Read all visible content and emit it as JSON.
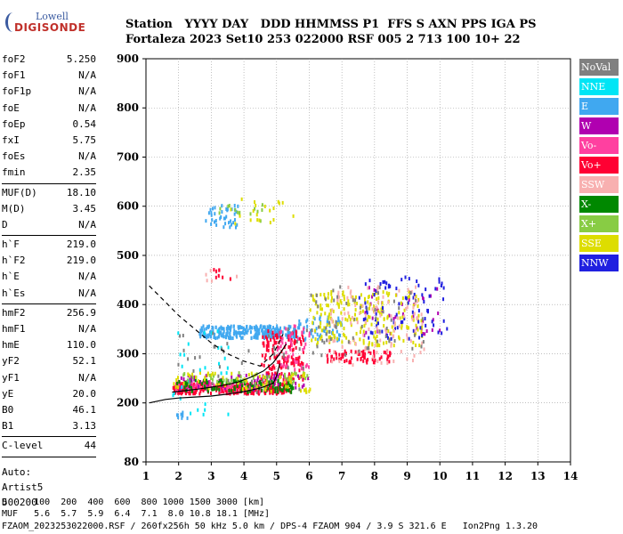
{
  "logo": {
    "line1": "Lowell",
    "line2": "DIGISONDE"
  },
  "header": {
    "line1": "Station   YYYY DAY   DDD HHMMSS P1  FFS S AXN PPS IGA PS",
    "line2": "Fortaleza 2023 Set10 253 022000 RSF 005 2 713 100 10+ 22"
  },
  "params": {
    "group1": [
      {
        "name": "foF2",
        "value": "5.250"
      },
      {
        "name": "foF1",
        "value": "N/A"
      },
      {
        "name": "foF1p",
        "value": "N/A"
      },
      {
        "name": "foE",
        "value": "N/A"
      },
      {
        "name": "foEp",
        "value": "0.54"
      },
      {
        "name": "fxI",
        "value": "5.75"
      },
      {
        "name": "foEs",
        "value": "N/A"
      },
      {
        "name": "fmin",
        "value": "2.35"
      }
    ],
    "group2": [
      {
        "name": "MUF(D)",
        "value": "18.10"
      },
      {
        "name": "M(D)",
        "value": "3.45"
      },
      {
        "name": "D",
        "value": "N/A"
      }
    ],
    "group3": [
      {
        "name": "h`F",
        "value": "219.0"
      },
      {
        "name": "h`F2",
        "value": "219.0"
      },
      {
        "name": "h`E",
        "value": "N/A"
      },
      {
        "name": "h`Es",
        "value": "N/A"
      }
    ],
    "group4": [
      {
        "name": "hmF2",
        "value": "256.9"
      },
      {
        "name": "hmF1",
        "value": "N/A"
      },
      {
        "name": "hmE",
        "value": "110.0"
      },
      {
        "name": "yF2",
        "value": "52.1"
      },
      {
        "name": "yF1",
        "value": "N/A"
      },
      {
        "name": "yE",
        "value": "20.0"
      },
      {
        "name": "B0",
        "value": "46.1"
      },
      {
        "name": "B1",
        "value": "3.13"
      }
    ],
    "group5": [
      {
        "name": "C-level",
        "value": "44"
      }
    ],
    "auto": [
      "Auto:",
      "Artist5",
      "500200"
    ]
  },
  "legend": [
    {
      "label": "NoVal",
      "color": "#808080"
    },
    {
      "label": "NNE",
      "color": "#00e5f5"
    },
    {
      "label": "E",
      "color": "#40a8f0"
    },
    {
      "label": "W",
      "color": "#b000b0"
    },
    {
      "label": "Vo-",
      "color": "#ff40a0"
    },
    {
      "label": "Vo+",
      "color": "#ff0033"
    },
    {
      "label": "SSW",
      "color": "#f8b0b0"
    },
    {
      "label": "X-",
      "color": "#008800"
    },
    {
      "label": "X+",
      "color": "#88cc44"
    },
    {
      "label": "SSE",
      "color": "#dddd00"
    },
    {
      "label": "NNW",
      "color": "#2020e0"
    }
  ],
  "footer": {
    "line1": "D     100  200  400  600  800 1000 1500 3000 [km]",
    "line2": "MUF   5.6  5.7  5.9  6.4  7.1  8.0 10.8 18.1 [MHz]",
    "line3": "FZAOM_2023253022000.RSF / 260fx256h 50 kHz 5.0 km / DPS-4 FZAOM 904 / 3.9 S 321.6 E   Ion2Png 1.3.20"
  },
  "chart_data": {
    "type": "scatter",
    "xlim": [
      1,
      14
    ],
    "ylim": [
      80,
      900
    ],
    "xticks": [
      "1",
      "2",
      "3",
      "4",
      "5",
      "6",
      "7",
      "8",
      "9",
      "10",
      "11",
      "12",
      "13",
      "14"
    ],
    "yticks": [
      "80",
      "200",
      "300",
      "400",
      "500",
      "600",
      "700",
      "800",
      "900"
    ],
    "grid": true,
    "clusters": [
      {
        "series": "E",
        "fx": [
          2.6,
          5.6
        ],
        "fy": [
          335,
          360
        ],
        "n": 260
      },
      {
        "series": "E",
        "fx": [
          2.8,
          3.8
        ],
        "fy": [
          560,
          605
        ],
        "n": 40
      },
      {
        "series": "E",
        "fx": [
          5.5,
          7.0
        ],
        "fy": [
          330,
          380
        ],
        "n": 60
      },
      {
        "series": "E",
        "fx": [
          1.8,
          2.3
        ],
        "fy": [
          170,
          185
        ],
        "n": 8
      },
      {
        "series": "Vo+",
        "fx": [
          1.8,
          5.4
        ],
        "fy": [
          222,
          245
        ],
        "n": 320
      },
      {
        "series": "Vo+",
        "fx": [
          4.5,
          5.8
        ],
        "fy": [
          250,
          350
        ],
        "n": 150
      },
      {
        "series": "Vo+",
        "fx": [
          6.5,
          8.5
        ],
        "fy": [
          285,
          310
        ],
        "n": 70
      },
      {
        "series": "Vo-",
        "fx": [
          1.9,
          5.0
        ],
        "fy": [
          225,
          250
        ],
        "n": 90
      },
      {
        "series": "Vo-",
        "fx": [
          5.0,
          6.0
        ],
        "fy": [
          270,
          360
        ],
        "n": 50
      },
      {
        "series": "W",
        "fx": [
          2.0,
          6.0
        ],
        "fy": [
          230,
          260
        ],
        "n": 60
      },
      {
        "series": "W",
        "fx": [
          7.5,
          10.0
        ],
        "fy": [
          340,
          440
        ],
        "n": 40
      },
      {
        "series": "X-",
        "fx": [
          1.9,
          5.5
        ],
        "fy": [
          225,
          250
        ],
        "n": 110
      },
      {
        "series": "X+",
        "fx": [
          2.0,
          6.0
        ],
        "fy": [
          240,
          265
        ],
        "n": 50
      },
      {
        "series": "X+",
        "fx": [
          3.2,
          4.6
        ],
        "fy": [
          570,
          610
        ],
        "n": 14
      },
      {
        "series": "SSE",
        "fx": [
          1.8,
          6.0
        ],
        "fy": [
          225,
          265
        ],
        "n": 70
      },
      {
        "series": "SSE",
        "fx": [
          6.0,
          9.5
        ],
        "fy": [
          320,
          430
        ],
        "n": 210
      },
      {
        "series": "SSE",
        "fx": [
          3.5,
          5.6
        ],
        "fy": [
          560,
          620
        ],
        "n": 20
      },
      {
        "series": "NNW",
        "fx": [
          7.5,
          10.2
        ],
        "fy": [
          330,
          460
        ],
        "n": 80
      },
      {
        "series": "NNE",
        "fx": [
          1.8,
          3.5
        ],
        "fy": [
          170,
          350
        ],
        "n": 30
      },
      {
        "series": "SSW",
        "fx": [
          6.5,
          9.5
        ],
        "fy": [
          280,
          440
        ],
        "n": 110
      },
      {
        "series": "SSW",
        "fx": [
          2.8,
          3.8
        ],
        "fy": [
          450,
          475
        ],
        "n": 8
      },
      {
        "series": "Vo+",
        "fx": [
          3.0,
          3.6
        ],
        "fy": [
          455,
          475
        ],
        "n": 8
      },
      {
        "series": "NoVal",
        "fx": [
          1.8,
          6.0
        ],
        "fy": [
          225,
          360
        ],
        "n": 40
      },
      {
        "series": "NoVal",
        "fx": [
          6.0,
          9.5
        ],
        "fy": [
          300,
          440
        ],
        "n": 60
      }
    ],
    "dashed_curve": {
      "x": [
        1.1,
        1.6,
        2.0,
        2.5,
        3.0,
        3.5,
        4.0,
        4.5,
        4.9,
        5.2
      ],
      "y": [
        438,
        405,
        378,
        350,
        322,
        300,
        285,
        275,
        300,
        340
      ]
    },
    "solid_curve1": {
      "x": [
        1.1,
        1.6,
        2.0,
        2.5,
        3.0,
        3.5,
        4.0,
        4.5,
        4.9,
        5.0,
        5.1
      ],
      "y": [
        200,
        207,
        210,
        212,
        214,
        218,
        223,
        230,
        240,
        255,
        280
      ]
    },
    "solid_curve2": {
      "x": [
        1.8,
        2.2,
        2.6,
        3.0,
        3.4,
        3.8,
        4.2,
        4.6,
        4.9,
        5.1,
        5.3
      ],
      "y": [
        222,
        225,
        228,
        232,
        236,
        242,
        252,
        265,
        282,
        300,
        320
      ]
    }
  }
}
